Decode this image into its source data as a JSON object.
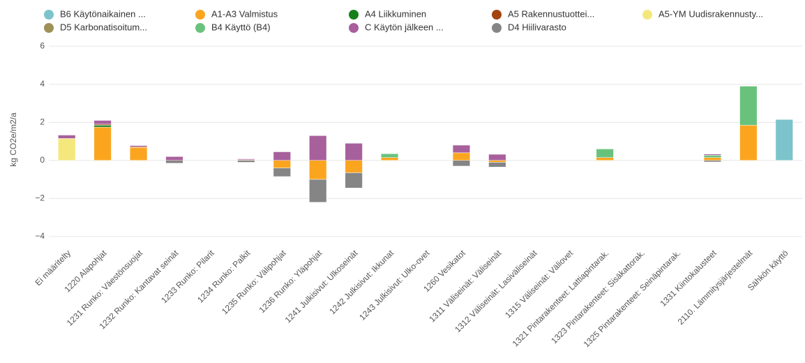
{
  "chart_data": {
    "type": "stacked_bar",
    "ylabel": "kg CO2e/m2/a",
    "categories": [
      "Ei määritelty",
      "1220 Alapohjat",
      "1231 Runko: Väestönsuojat",
      "1232 Runko: Kantavat seinät",
      "1233 Runko: Pilarit",
      "1234 Runko: Palkit",
      "1235 Runko: Välipohjat",
      "1236 Runko: Yläpohjat",
      "1241 Julkisivut: Ulkoseinät",
      "1242 Julkisivut: Ikkunat",
      "1243 Julkisivut: Ulko-ovet",
      "1260 Vesikatot",
      "1311 Väliseinät: Väliseinät",
      "1312 Väliseinät: Lasiväliseinät",
      "1315 Väliseinät: Väliovet",
      "1321 Pintarakenteet: Lattiapintarak.",
      "1323 Pintarakenteet: Sisäkattorak.",
      "1325 Pintarakenteet: Seinäpintarak.",
      "1331 Kiintokalusteet",
      "2110. Lämmitysjärjestelmät",
      "Sähkön käyttö"
    ],
    "series": [
      {
        "name": "B6 Käytönaikainen ...",
        "color": "#7cc3cb",
        "values": [
          0,
          0,
          0,
          0,
          0,
          0,
          0,
          0,
          0,
          0,
          0,
          0,
          0,
          0,
          0,
          0,
          0,
          0,
          0,
          0,
          2.15
        ]
      },
      {
        "name": "A1-A3 Valmistus",
        "color": "#fba51f",
        "values": [
          0,
          1.75,
          0.68,
          0,
          0,
          0,
          -0.4,
          -1.0,
          -0.65,
          0.15,
          0,
          0.4,
          -0.1,
          0,
          0,
          0.15,
          0,
          0,
          0.15,
          1.85,
          0
        ]
      },
      {
        "name": "A4 Liikkuminen",
        "color": "#17801c",
        "values": [
          0,
          0.1,
          0,
          0,
          0,
          0,
          0,
          0,
          0,
          0,
          0,
          0,
          0,
          0,
          0,
          0,
          0,
          0,
          0,
          0,
          0
        ]
      },
      {
        "name": "A5 Rakennustuottei...",
        "color": "#a3440f",
        "values": [
          0,
          0.05,
          0.04,
          0,
          0,
          0.03,
          0,
          0,
          0,
          0,
          0,
          0,
          0,
          0,
          0,
          0,
          0,
          0,
          0,
          0,
          0
        ]
      },
      {
        "name": "A5-YM Uudisrakennusty...",
        "color": "#f4e77c",
        "values": [
          1.15,
          0,
          0,
          0,
          0,
          0,
          0,
          0,
          0,
          0,
          0,
          0,
          0,
          0,
          0,
          0,
          0,
          0,
          0,
          0,
          0
        ]
      },
      {
        "name": "D5 Karbonatisoitum...",
        "color": "#9e9158",
        "values": [
          0,
          0,
          0,
          0,
          0,
          0,
          0,
          0,
          0,
          0,
          0,
          0,
          0,
          0,
          0,
          0,
          0,
          0,
          0,
          0,
          0
        ]
      },
      {
        "name": "B4 Käyttö (B4)",
        "color": "#69c27c",
        "values": [
          0,
          0,
          0,
          0,
          0,
          0,
          0,
          0,
          0,
          0.2,
          0,
          0,
          0,
          0,
          0,
          0.45,
          0,
          0,
          0.12,
          2.05,
          0
        ]
      },
      {
        "name": "C Käytön jälkeen ...",
        "color": "#a8609c",
        "values": [
          0.18,
          0.2,
          0.06,
          0.2,
          0,
          0.05,
          0.45,
          1.3,
          0.9,
          0,
          0,
          0.4,
          0.32,
          0,
          0,
          0,
          0,
          0,
          0.06,
          0,
          0
        ]
      },
      {
        "name": "D4 Hiilivarasto",
        "color": "#858585",
        "values": [
          0,
          0,
          0,
          -0.15,
          0,
          -0.1,
          -0.45,
          -1.2,
          -0.8,
          0,
          0,
          -0.3,
          -0.25,
          0,
          0,
          0,
          0,
          0,
          -0.08,
          0,
          0
        ]
      }
    ],
    "ylim": [
      -4.3,
      6.3
    ],
    "yticks": [
      {
        "value": -4,
        "label": "−4"
      },
      {
        "value": -2,
        "label": "−2"
      },
      0,
      2,
      4,
      6
    ],
    "grid": true
  }
}
